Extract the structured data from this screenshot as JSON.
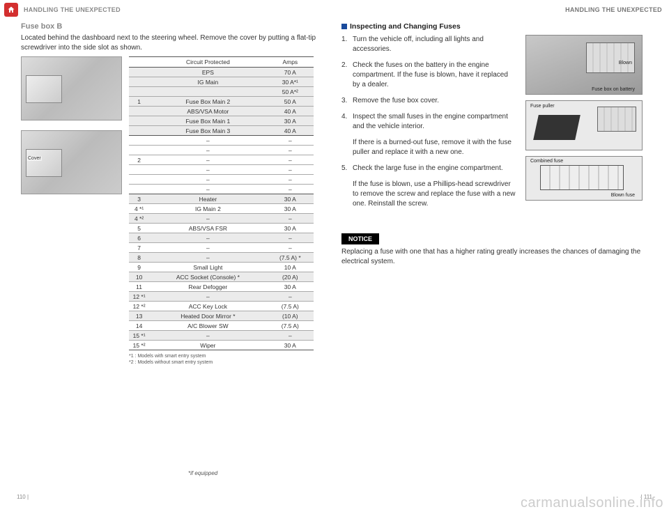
{
  "header": {
    "left": "HANDLING THE UNEXPECTED",
    "right": "HANDLING THE UNEXPECTED"
  },
  "left": {
    "subtitle": "Fuse box B",
    "intro": "Located behind the dashboard next to the steering wheel. Remove the cover by putting a flat-tip screwdriver into the side slot as shown.",
    "img2_label": "Cover",
    "table": {
      "headers": [
        "",
        "Circuit Protected",
        "Amps"
      ],
      "rows": [
        {
          "n": "",
          "c": "EPS",
          "a": "70 A",
          "shaded": true
        },
        {
          "n": "",
          "c": "IG Main",
          "a": "30 A*¹",
          "shaded": true
        },
        {
          "n": "",
          "c": "",
          "a": "50 A*²",
          "shaded": true
        },
        {
          "n": "1",
          "c": "Fuse Box Main 2",
          "a": "50 A",
          "shaded": true
        },
        {
          "n": "",
          "c": "ABS/VSA Motor",
          "a": "40 A",
          "shaded": true
        },
        {
          "n": "",
          "c": "Fuse Box Main 1",
          "a": "30 A",
          "shaded": true
        },
        {
          "n": "",
          "c": "Fuse Box Main 3",
          "a": "40 A",
          "shaded": true,
          "sep": true
        },
        {
          "n": "",
          "c": "–",
          "a": "–"
        },
        {
          "n": "",
          "c": "–",
          "a": "–"
        },
        {
          "n": "2",
          "c": "–",
          "a": "–"
        },
        {
          "n": "",
          "c": "–",
          "a": "–"
        },
        {
          "n": "",
          "c": "–",
          "a": "–"
        },
        {
          "n": "",
          "c": "–",
          "a": "–",
          "sep": true
        },
        {
          "n": "3",
          "c": "Heater",
          "a": "30 A",
          "shaded": true
        },
        {
          "n": "4 *¹",
          "c": "IG Main 2",
          "a": "30 A"
        },
        {
          "n": "4 *²",
          "c": "–",
          "a": "–",
          "shaded": true
        },
        {
          "n": "5",
          "c": "ABS/VSA FSR",
          "a": "30 A"
        },
        {
          "n": "6",
          "c": "–",
          "a": "–",
          "shaded": true
        },
        {
          "n": "7",
          "c": "–",
          "a": "–"
        },
        {
          "n": "8",
          "c": "–",
          "a": "(7.5 A) *",
          "shaded": true
        },
        {
          "n": "9",
          "c": "Small Light",
          "a": "10 A"
        },
        {
          "n": "10",
          "c": "ACC Socket (Console) *",
          "a": "(20 A)",
          "shaded": true
        },
        {
          "n": "11",
          "c": "Rear Defogger",
          "a": "30 A"
        },
        {
          "n": "12 *¹",
          "c": "–",
          "a": "–",
          "shaded": true
        },
        {
          "n": "12 *²",
          "c": "ACC Key Lock",
          "a": "(7.5 A)"
        },
        {
          "n": "13",
          "c": "Heated Door Mirror *",
          "a": "(10 A)",
          "shaded": true
        },
        {
          "n": "14",
          "c": "A/C Blower SW",
          "a": "(7.5 A)"
        },
        {
          "n": "15 *¹",
          "c": "–",
          "a": "–",
          "shaded": true
        },
        {
          "n": "15 *²",
          "c": "Wiper",
          "a": "30 A",
          "sep": true
        }
      ]
    },
    "footnote1": "*1 : Models with smart entry system",
    "footnote2": "*2 : Models without smart entry system"
  },
  "right": {
    "heading": "Inspecting and Changing Fuses",
    "steps": [
      {
        "n": "1.",
        "t": "Turn the vehicle off, including all lights and accessories."
      },
      {
        "n": "2.",
        "t": "Check the fuses on the battery in the engine compartment. If the fuse is blown, have it replaced by a dealer."
      },
      {
        "n": "3.",
        "t": "Remove the fuse box cover."
      },
      {
        "n": "4.",
        "t": "Inspect the small fuses in the engine compartment and the vehicle interior."
      }
    ],
    "step4_extra": "If there is a burned-out fuse, remove it with the fuse puller and replace it with a new one.",
    "step5_n": "5.",
    "step5_t": "Check the large fuse in the engine compartment.",
    "step5_extra": "If the fuse is blown, use a Phillips-head screwdriver to remove the screw and replace the fuse with a new one. Reinstall the screw.",
    "diagram1_label1": "Blown",
    "diagram1_label2": "Fuse box on battery",
    "diagram2_label": "Fuse puller",
    "diagram3_label1": "Combined fuse",
    "diagram3_label2": "Blown fuse",
    "notice_label": "NOTICE",
    "notice_text": "Replacing a fuse with one that has a higher rating greatly increases the chances of damaging the electrical system."
  },
  "bottom_note": "*if equipped",
  "page_left": "110    |",
  "page_right": "|    111",
  "watermark": "carmanualsonline.info"
}
